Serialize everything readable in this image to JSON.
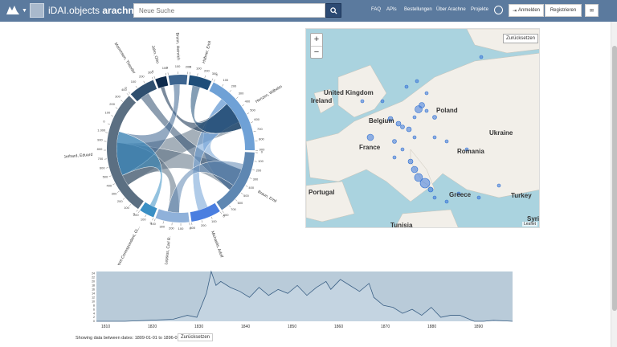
{
  "header": {
    "brand_prefix": "iDAI.objects",
    "brand_name": "arachne",
    "search_placeholder": "Neue Suche",
    "nav": [
      "FAQ",
      "APIs",
      "Bestellungen",
      "Über Arachne",
      "Projekte"
    ],
    "login_label": "Anmelden",
    "register_label": "Registrieren",
    "icons": [
      "logo-icon",
      "search-icon",
      "globe-icon",
      "login-icon",
      "envelope-icon"
    ]
  },
  "chord": {
    "segments": [
      {
        "label": "Hübner, Emil",
        "color": "#1f4e79"
      },
      {
        "label": "Henzen, Wilhelm",
        "color": "#6fa1d6"
      },
      {
        "label": "Braun, Emil",
        "color": "#5e87b2"
      },
      {
        "label": "Michaelis, Adolf",
        "color": "#4a7ee0"
      },
      {
        "label": "Lepsius, Carl R.",
        "color": "#8fb1da"
      },
      {
        "label": "Unbekannt Correspondent, Gi...",
        "color": "#3a8fc4"
      },
      {
        "label": "Gerhard, Eduard",
        "color": "#5b6f82"
      },
      {
        "label": "Mommsen, Theodor",
        "color": "#2f4f6f"
      },
      {
        "label": "Jahn, Otto",
        "color": "#0f2b4c"
      },
      {
        "label": "Brunn, Heinrich",
        "color": "#3d6590"
      }
    ],
    "ticks": [
      "0",
      "100",
      "200",
      "300",
      "400",
      "500",
      "600",
      "700",
      "800",
      "900",
      "1.000"
    ]
  },
  "map": {
    "reset_label": "Zurücksetzen",
    "attribution": "Leaflet",
    "zoom_in": "+",
    "zoom_out": "−",
    "countries": [
      "United Kingdom",
      "Ireland",
      "Belgium",
      "Poland",
      "Ukraine",
      "France",
      "Romania",
      "Portugal",
      "Greece",
      "Turkey",
      "Tunisia",
      "Syria"
    ]
  },
  "timeline": {
    "x_ticks": [
      "1810",
      "1820",
      "1830",
      "1840",
      "1850",
      "1860",
      "1870",
      "1880",
      "1890"
    ],
    "y_ticks": [
      "24",
      "22",
      "20",
      "18",
      "16",
      "14",
      "12",
      "10",
      "8",
      "6",
      "4",
      "2",
      "0"
    ],
    "status_text": "Showing data between dates: 1809-01-01 to 1896-01-01",
    "reset_label": "Zurücksetzen"
  },
  "chart_data": {
    "type": "area",
    "x": [
      1809,
      1815,
      1820,
      1825,
      1828,
      1830,
      1831,
      1832,
      1833,
      1834,
      1835,
      1837,
      1839,
      1841,
      1843,
      1845,
      1847,
      1849,
      1851,
      1853,
      1855,
      1857,
      1858,
      1860,
      1862,
      1864,
      1866,
      1867,
      1869,
      1871,
      1873,
      1875,
      1877,
      1879,
      1881,
      1883,
      1885,
      1886,
      1888,
      1890,
      1892,
      1896
    ],
    "values": [
      0,
      0,
      0.5,
      1,
      3,
      2,
      8,
      14,
      25,
      18,
      20,
      17,
      15,
      12,
      17,
      13,
      16,
      14,
      18,
      13,
      17,
      20,
      16,
      21,
      18,
      15,
      19,
      12,
      8,
      7,
      4,
      6,
      3,
      7,
      2,
      3,
      3,
      2,
      0,
      0,
      0.5,
      0
    ],
    "ylim": [
      0,
      25
    ]
  }
}
